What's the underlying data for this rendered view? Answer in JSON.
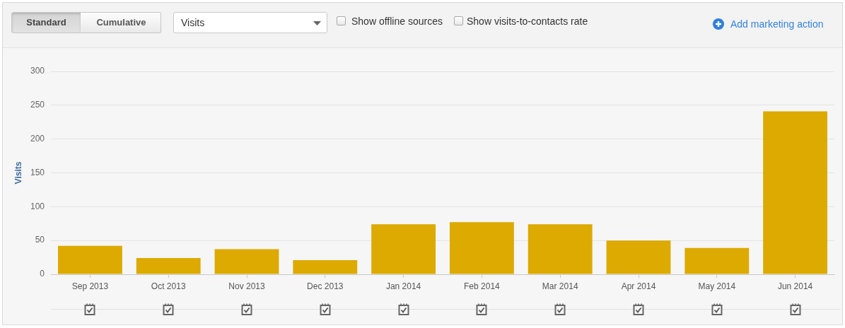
{
  "chart_data": {
    "type": "bar",
    "ylabel": "Visits",
    "categories": [
      "Sep 2013",
      "Oct 2013",
      "Nov 2013",
      "Dec 2013",
      "Jan 2014",
      "Feb 2014",
      "Mar 2014",
      "Apr 2014",
      "May 2014",
      "Jun 2014"
    ],
    "values": [
      42,
      24,
      37,
      21,
      74,
      77,
      74,
      50,
      39,
      241
    ],
    "color": "#dcaa00",
    "ylim": [
      0,
      300
    ],
    "yticks": [
      0,
      50,
      100,
      150,
      200,
      250,
      300
    ],
    "grid": "y",
    "annotations": [
      "Standard",
      "Cumulative",
      "Visits",
      "Show offline sources",
      "Show visits-to-contacts rate",
      "Add marketing action"
    ]
  }
}
